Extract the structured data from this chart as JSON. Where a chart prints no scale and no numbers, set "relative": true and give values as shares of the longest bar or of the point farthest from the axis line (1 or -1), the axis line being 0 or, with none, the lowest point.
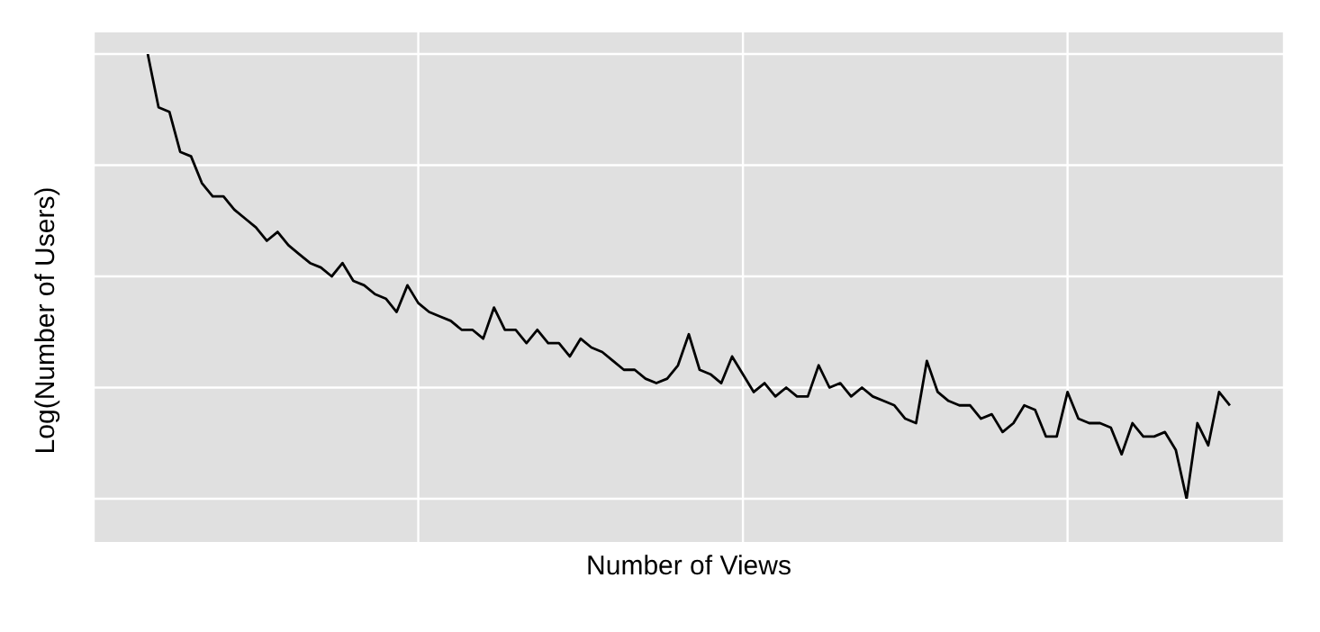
{
  "chart_data": {
    "type": "line",
    "xlabel": "Number of Views",
    "ylabel": "Log(Number of Users)",
    "relative": true,
    "grid": true,
    "legend": false,
    "marker": "none",
    "line_style": "solid",
    "categories": [
      null,
      null,
      null,
      null,
      null,
      null,
      null,
      null,
      null,
      null,
      null,
      null,
      null,
      null,
      null,
      null,
      null,
      null,
      null,
      null,
      null,
      null,
      null,
      null,
      null,
      null,
      null,
      null,
      null,
      null,
      null,
      null,
      null,
      null,
      null,
      null,
      null,
      null,
      null,
      null,
      null,
      null,
      null,
      null,
      null,
      null,
      null,
      null,
      null,
      null,
      null,
      null,
      null,
      null,
      null,
      null,
      null,
      null,
      null,
      null,
      null,
      null,
      null,
      null,
      null,
      null,
      null,
      null,
      null,
      null,
      null,
      null,
      null,
      null,
      null,
      null,
      null,
      null,
      null,
      null,
      null,
      null,
      null,
      null,
      null,
      null,
      null,
      null,
      null,
      null,
      null,
      null,
      null,
      null,
      null,
      null,
      null,
      null,
      null,
      null,
      null
    ],
    "series": [
      {
        "color": "#000000",
        "values": [
          1,
          0.88,
          0.87,
          0.78,
          0.77,
          0.71,
          0.68,
          0.68,
          0.65,
          0.63,
          0.61,
          0.58,
          0.6,
          0.57,
          0.55,
          0.53,
          0.52,
          0.5,
          0.53,
          0.49,
          0.48,
          0.46,
          0.45,
          0.42,
          0.48,
          0.44,
          0.42,
          0.41,
          0.4,
          0.38,
          0.38,
          0.36,
          0.43,
          0.38,
          0.38,
          0.35,
          0.38,
          0.35,
          0.35,
          0.32,
          0.36,
          0.34,
          0.33,
          0.31,
          0.29,
          0.29,
          0.27,
          0.26,
          0.27,
          0.3,
          0.37,
          0.29,
          0.28,
          0.26,
          0.32,
          0.28,
          0.24,
          0.26,
          0.23,
          0.25,
          0.23,
          0.23,
          0.3,
          0.25,
          0.26,
          0.23,
          0.25,
          0.23,
          0.22,
          0.21,
          0.18,
          0.17,
          0.31,
          0.24,
          0.22,
          0.21,
          0.21,
          0.18,
          0.19,
          0.15,
          0.17,
          0.21,
          0.2,
          0.14,
          0.14,
          0.24,
          0.18,
          0.17,
          0.17,
          0.16,
          0.1,
          0.17,
          0.14,
          0.14,
          0.15,
          0.11,
          0,
          0.17,
          0.12,
          0.24,
          0.21
        ]
      }
    ]
  }
}
